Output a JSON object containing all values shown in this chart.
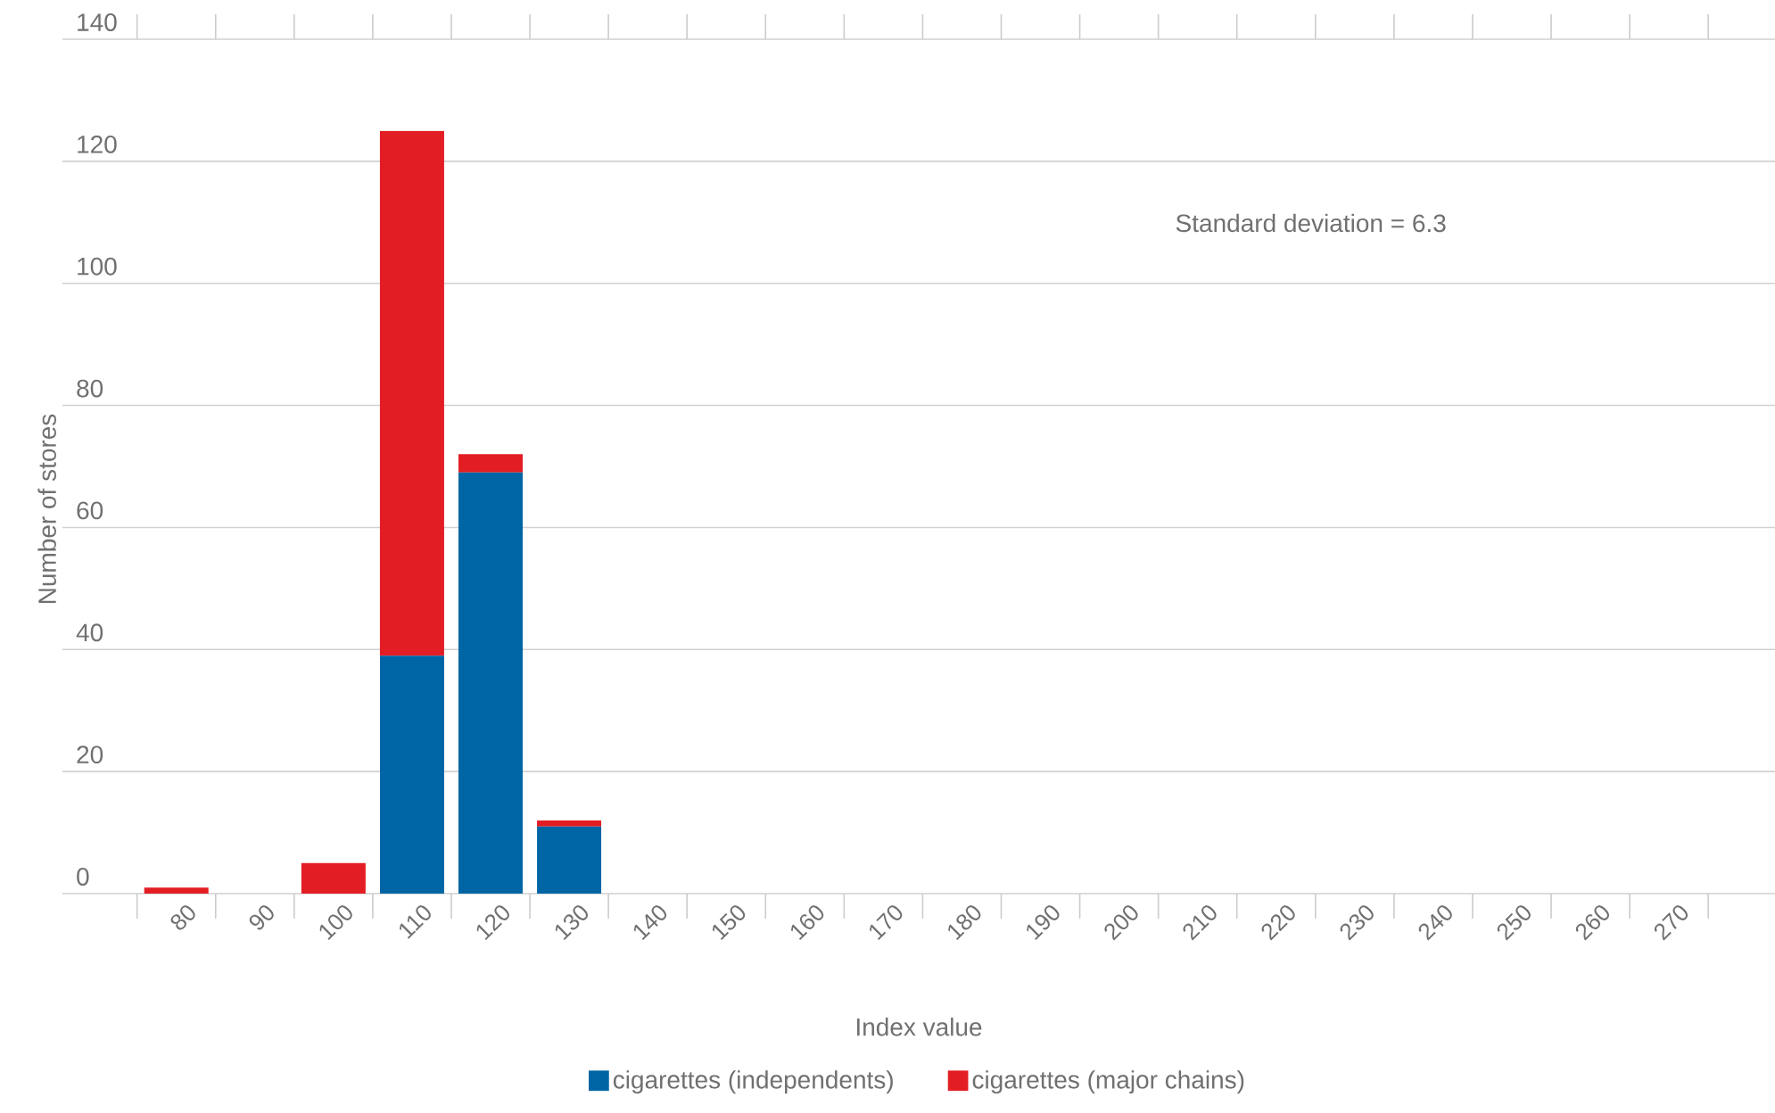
{
  "chart_data": {
    "type": "bar",
    "stacked": true,
    "xlabel": "Index value",
    "ylabel": "Number of stores",
    "categories": [
      "80",
      "90",
      "100",
      "110",
      "120",
      "130",
      "140",
      "150",
      "160",
      "170",
      "180",
      "190",
      "200",
      "210",
      "220",
      "230",
      "240",
      "250",
      "260",
      "270"
    ],
    "series": [
      {
        "name": "cigarettes (independents)",
        "color": "#0065a4",
        "values": [
          0,
          0,
          0,
          39,
          69,
          11,
          0,
          0,
          0,
          0,
          0,
          0,
          0,
          0,
          0,
          0,
          0,
          0,
          0,
          0
        ]
      },
      {
        "name": "cigarettes (major chains)",
        "color": "#e31d24",
        "values": [
          1,
          0,
          5,
          86,
          3,
          1,
          0,
          0,
          0,
          0,
          0,
          0,
          0,
          0,
          0,
          0,
          0,
          0,
          0,
          0
        ]
      }
    ],
    "ylim": [
      0,
      140
    ],
    "yticks": [
      0,
      20,
      40,
      60,
      80,
      100,
      120,
      140
    ],
    "grid": "y",
    "legend": "bottom",
    "annotations": [
      "Standard deviation = 6.3"
    ]
  }
}
